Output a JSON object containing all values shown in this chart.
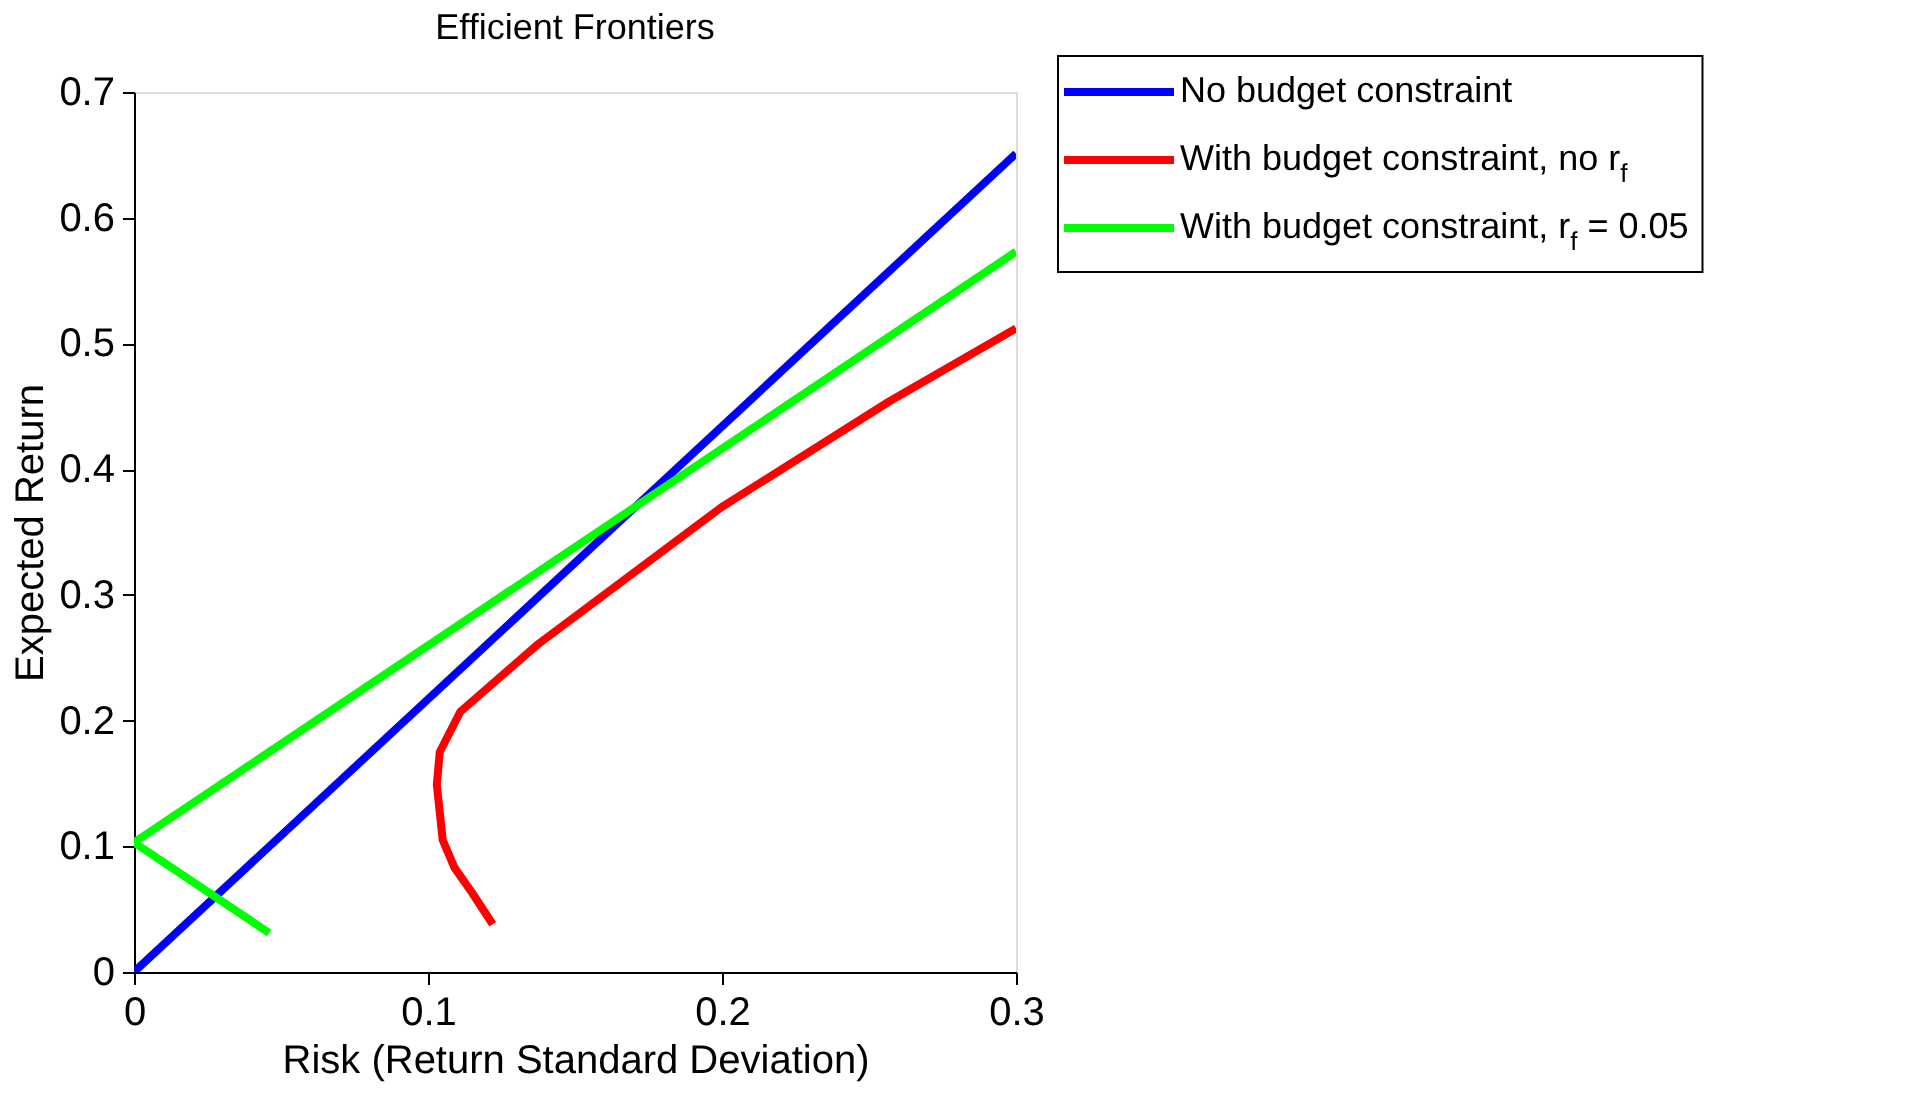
{
  "chart_data": {
    "type": "line",
    "title": "Efficient Frontiers",
    "xlabel": "Risk (Return Standard Deviation)",
    "ylabel": "Expected Return",
    "xlim": [
      0,
      0.3
    ],
    "xticks": [
      0,
      0.1,
      0.2,
      0.3
    ],
    "ylim": [
      0,
      0.7
    ],
    "yticks": [
      0,
      0.1,
      0.2,
      0.3,
      0.4,
      0.5,
      0.6,
      0.7
    ],
    "grid": false,
    "legend": "top right",
    "marker": "none",
    "line_style": "solid",
    "series": [
      {
        "name": "No budget constraint",
        "color": "#0000ff",
        "x": [
          0,
          0.3
        ],
        "values": [
          0,
          0.651
        ]
      },
      {
        "name": "With budget constraint, no r$_{f}$",
        "color": "#ff0000",
        "x": [
          0.122,
          0.115,
          0.109,
          0.105,
          0.103,
          0.104,
          0.111,
          0.137,
          0.2,
          0.257,
          0.3
        ],
        "values": [
          0.038,
          0.063,
          0.083,
          0.105,
          0.149,
          0.175,
          0.207,
          0.26,
          0.37,
          0.454,
          0.512
        ]
      },
      {
        "name": "With budget constraint, r$_{f}$ = 0.05",
        "color": "#00ff00",
        "x": [
          0.3,
          0,
          0.046
        ],
        "values": [
          0.573,
          0.103,
          0.031
        ]
      }
    ]
  }
}
